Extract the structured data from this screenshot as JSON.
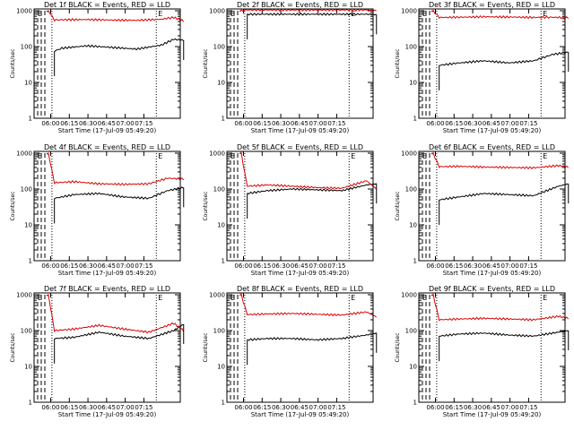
{
  "colors": {
    "events": "#000000",
    "lld": "#dd0000"
  },
  "common": {
    "xlabel": "Start Time (17-Jul-09 05:49:20)",
    "ylabel": "Counts/sec",
    "xticks": [
      "06:00",
      "06:15",
      "06:30",
      "06:45",
      "07:00",
      "07:15"
    ],
    "yticks": [
      "1",
      "10",
      "100",
      "1000"
    ],
    "marker": "E"
  },
  "chart_data": [
    {
      "type": "line",
      "title": "Det 1f BLACK = Events, RED = LLD",
      "yscale": "log",
      "ylim": [
        1,
        1000
      ],
      "x_minutes_after_start": [
        14,
        20,
        40,
        60,
        80,
        100,
        110,
        118
      ],
      "series": [
        {
          "name": "Events",
          "values": [
            75,
            90,
            105,
            95,
            85,
            110,
            160,
            150
          ]
        },
        {
          "name": "LLD",
          "values": [
            550,
            560,
            570,
            550,
            540,
            580,
            650,
            520
          ]
        }
      ]
    },
    {
      "type": "line",
      "title": "Det 2f BLACK = Events, RED = LLD",
      "yscale": "log",
      "ylim": [
        1,
        1000
      ],
      "x_minutes_after_start": [
        14,
        30,
        50,
        70,
        90,
        110,
        118
      ],
      "series": [
        {
          "name": "Events",
          "values": [
            800,
            800,
            800,
            800,
            800,
            800,
            780
          ]
        },
        {
          "name": "LLD",
          "values": [
            1050,
            1050,
            1050,
            1050,
            1050,
            1050,
            1020
          ]
        }
      ]
    },
    {
      "type": "line",
      "title": "Det 3f BLACK = Events, RED = LLD",
      "yscale": "log",
      "ylim": [
        1,
        1000
      ],
      "x_minutes_after_start": [
        14,
        30,
        50,
        70,
        90,
        105,
        118
      ],
      "series": [
        {
          "name": "Events",
          "values": [
            30,
            35,
            40,
            35,
            40,
            60,
            70
          ]
        },
        {
          "name": "LLD",
          "values": [
            650,
            660,
            680,
            670,
            650,
            660,
            640
          ]
        }
      ]
    },
    {
      "type": "line",
      "title": "Det 4f BLACK = Events, RED = LLD",
      "yscale": "log",
      "ylim": [
        1,
        1000
      ],
      "x_minutes_after_start": [
        14,
        30,
        50,
        70,
        90,
        105,
        118
      ],
      "series": [
        {
          "name": "Events",
          "values": [
            55,
            70,
            75,
            60,
            55,
            90,
            110
          ]
        },
        {
          "name": "LLD",
          "values": [
            150,
            160,
            140,
            135,
            140,
            200,
            190
          ]
        }
      ]
    },
    {
      "type": "line",
      "title": "Det 5f BLACK = Events, RED = LLD",
      "yscale": "log",
      "ylim": [
        1,
        1000
      ],
      "x_minutes_after_start": [
        14,
        30,
        50,
        70,
        90,
        110,
        118
      ],
      "series": [
        {
          "name": "Events",
          "values": [
            75,
            90,
            100,
            95,
            90,
            130,
            140
          ]
        },
        {
          "name": "LLD",
          "values": [
            120,
            130,
            120,
            110,
            105,
            170,
            100
          ]
        }
      ]
    },
    {
      "type": "line",
      "title": "Det 6f BLACK = Events, RED = LLD",
      "yscale": "log",
      "ylim": [
        1,
        1000
      ],
      "x_minutes_after_start": [
        14,
        30,
        50,
        70,
        90,
        110,
        118
      ],
      "series": [
        {
          "name": "Events",
          "values": [
            50,
            60,
            75,
            70,
            65,
            120,
            140
          ]
        },
        {
          "name": "LLD",
          "values": [
            420,
            430,
            410,
            400,
            390,
            450,
            410
          ]
        }
      ]
    },
    {
      "type": "line",
      "title": "Det 7f BLACK = Events, RED = LLD",
      "yscale": "log",
      "ylim": [
        1,
        1000
      ],
      "x_minutes_after_start": [
        14,
        30,
        50,
        70,
        90,
        110,
        118
      ],
      "series": [
        {
          "name": "Events",
          "values": [
            60,
            65,
            90,
            70,
            60,
            100,
            150
          ]
        },
        {
          "name": "LLD",
          "values": [
            100,
            110,
            140,
            110,
            90,
            160,
            100
          ]
        }
      ]
    },
    {
      "type": "line",
      "title": "Det 8f BLACK = Events, RED = LLD",
      "yscale": "log",
      "ylim": [
        1,
        1000
      ],
      "x_minutes_after_start": [
        14,
        30,
        50,
        70,
        90,
        110,
        118
      ],
      "series": [
        {
          "name": "Events",
          "values": [
            55,
            60,
            60,
            55,
            60,
            75,
            85
          ]
        },
        {
          "name": "LLD",
          "values": [
            280,
            290,
            300,
            285,
            270,
            330,
            240
          ]
        }
      ]
    },
    {
      "type": "line",
      "title": "Det 9f BLACK = Events, RED = LLD",
      "yscale": "log",
      "ylim": [
        1,
        1000
      ],
      "x_minutes_after_start": [
        14,
        30,
        50,
        70,
        90,
        110,
        118
      ],
      "series": [
        {
          "name": "Events",
          "values": [
            70,
            80,
            85,
            75,
            70,
            90,
            100
          ]
        },
        {
          "name": "LLD",
          "values": [
            200,
            210,
            220,
            210,
            200,
            250,
            220
          ]
        }
      ]
    }
  ]
}
